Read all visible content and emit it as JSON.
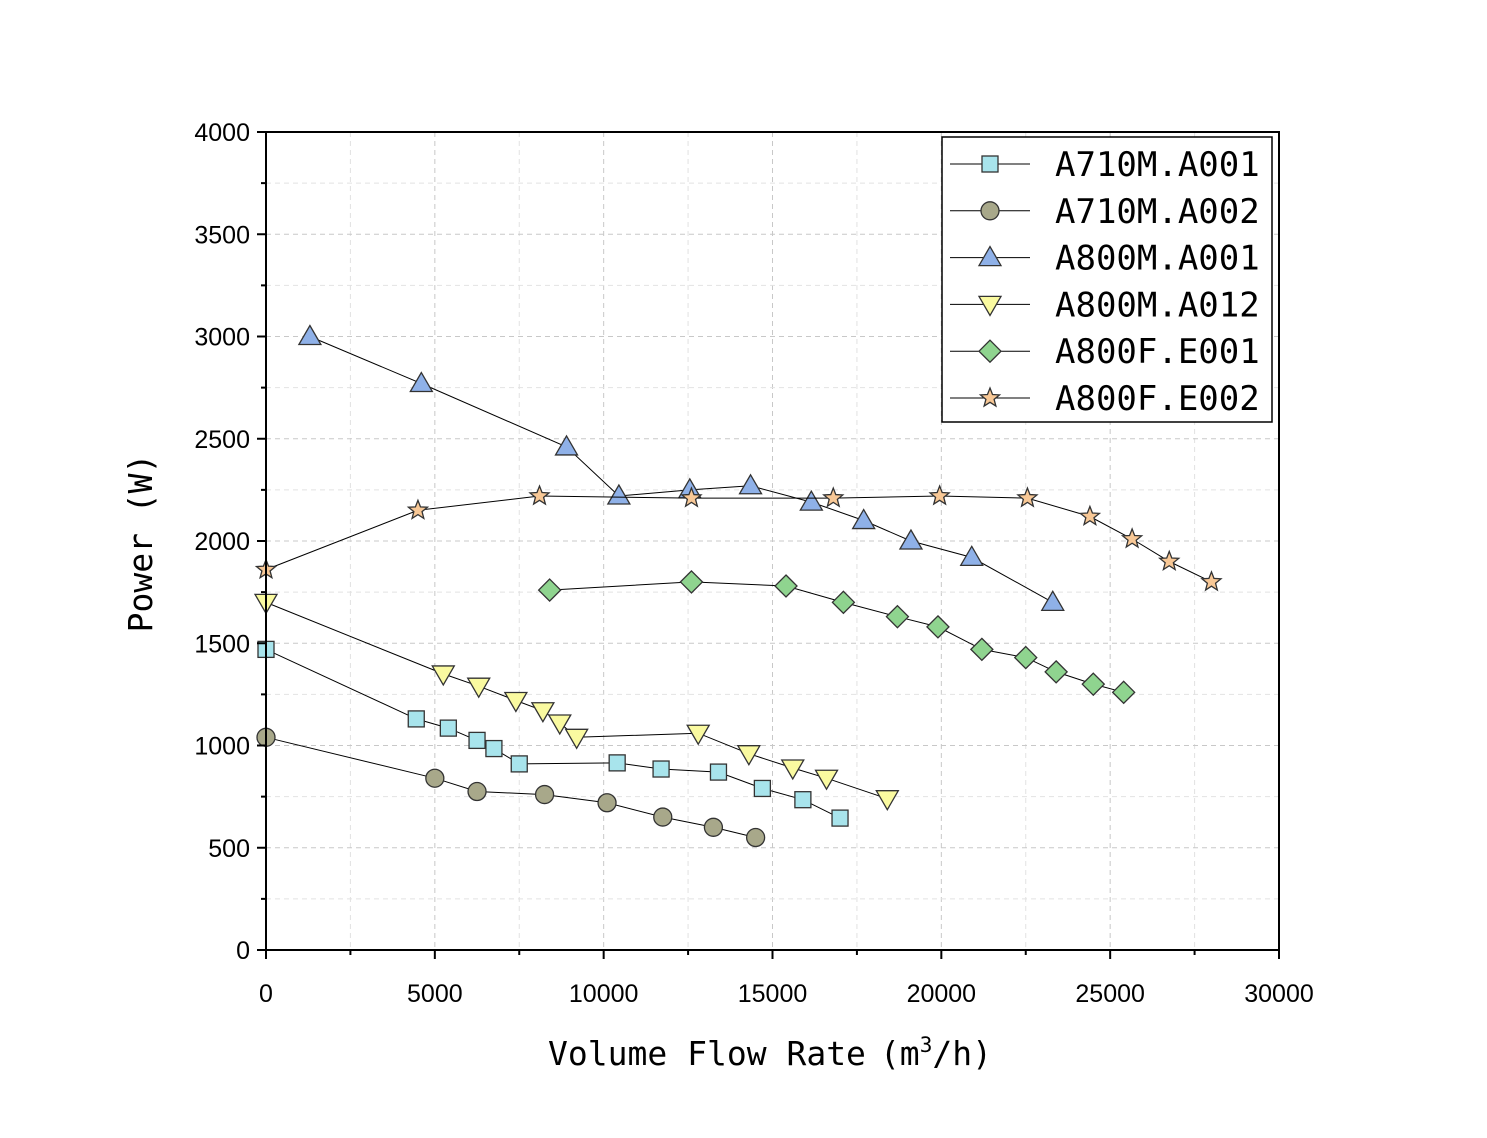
{
  "chart_data": {
    "type": "line",
    "xlabel": "Volume Flow Rate",
    "xlabel_unit_prefix": "(m",
    "xlabel_unit_sup": "3",
    "xlabel_unit_suffix": "/h)",
    "ylabel": "Power  (W)",
    "xlim": [
      0,
      30000
    ],
    "ylim": [
      0,
      4000
    ],
    "xticks": [
      0,
      5000,
      10000,
      15000,
      20000,
      25000,
      30000
    ],
    "yticks": [
      0,
      500,
      1000,
      1500,
      2000,
      2500,
      3000,
      3500,
      4000
    ],
    "grid": true,
    "legend_position": "top-right",
    "series": [
      {
        "name": "A710M.A001",
        "marker": "square",
        "color": "#a8e4ec",
        "x": [
          0,
          4450,
          5400,
          6250,
          6750,
          7500,
          10400,
          11700,
          13400,
          14700,
          15900,
          17000
        ],
        "y": [
          1470,
          1130,
          1085,
          1025,
          985,
          910,
          915,
          885,
          870,
          790,
          735,
          645
        ]
      },
      {
        "name": "A710M.A002",
        "marker": "circle",
        "color": "#a8a88a",
        "x": [
          0,
          5000,
          6250,
          8250,
          10100,
          11750,
          13250,
          14500
        ],
        "y": [
          1040,
          840,
          775,
          760,
          720,
          650,
          600,
          550
        ]
      },
      {
        "name": "A800M.A001",
        "marker": "triangle-up",
        "color": "#8fb1e8",
        "x": [
          1300,
          4600,
          8900,
          10450,
          12550,
          14350,
          16150,
          17700,
          19100,
          20900,
          23300
        ],
        "y": [
          3000,
          2770,
          2460,
          2220,
          2250,
          2270,
          2190,
          2100,
          2000,
          1920,
          1700
        ]
      },
      {
        "name": "A800M.A012",
        "marker": "triangle-down",
        "color": "#fafaa0",
        "x": [
          0,
          5250,
          6300,
          7400,
          8200,
          8700,
          9200,
          12800,
          14300,
          15600,
          16600,
          18400
        ],
        "y": [
          1700,
          1350,
          1290,
          1220,
          1170,
          1110,
          1040,
          1060,
          960,
          890,
          840,
          740
        ]
      },
      {
        "name": "A800F.E001",
        "marker": "diamond",
        "color": "#8fd48f",
        "x": [
          8400,
          12600,
          15400,
          17100,
          18700,
          19900,
          21200,
          22500,
          23400,
          24500,
          25400
        ],
        "y": [
          1760,
          1800,
          1780,
          1700,
          1630,
          1580,
          1470,
          1430,
          1360,
          1300,
          1260
        ]
      },
      {
        "name": "A800F.E002",
        "marker": "star",
        "color": "#f8c896",
        "x": [
          0,
          4500,
          8100,
          12600,
          16800,
          19950,
          22550,
          24400,
          25650,
          26750,
          28000
        ],
        "y": [
          1860,
          2150,
          2220,
          2210,
          2210,
          2220,
          2210,
          2120,
          2010,
          1900,
          1800
        ]
      }
    ]
  }
}
